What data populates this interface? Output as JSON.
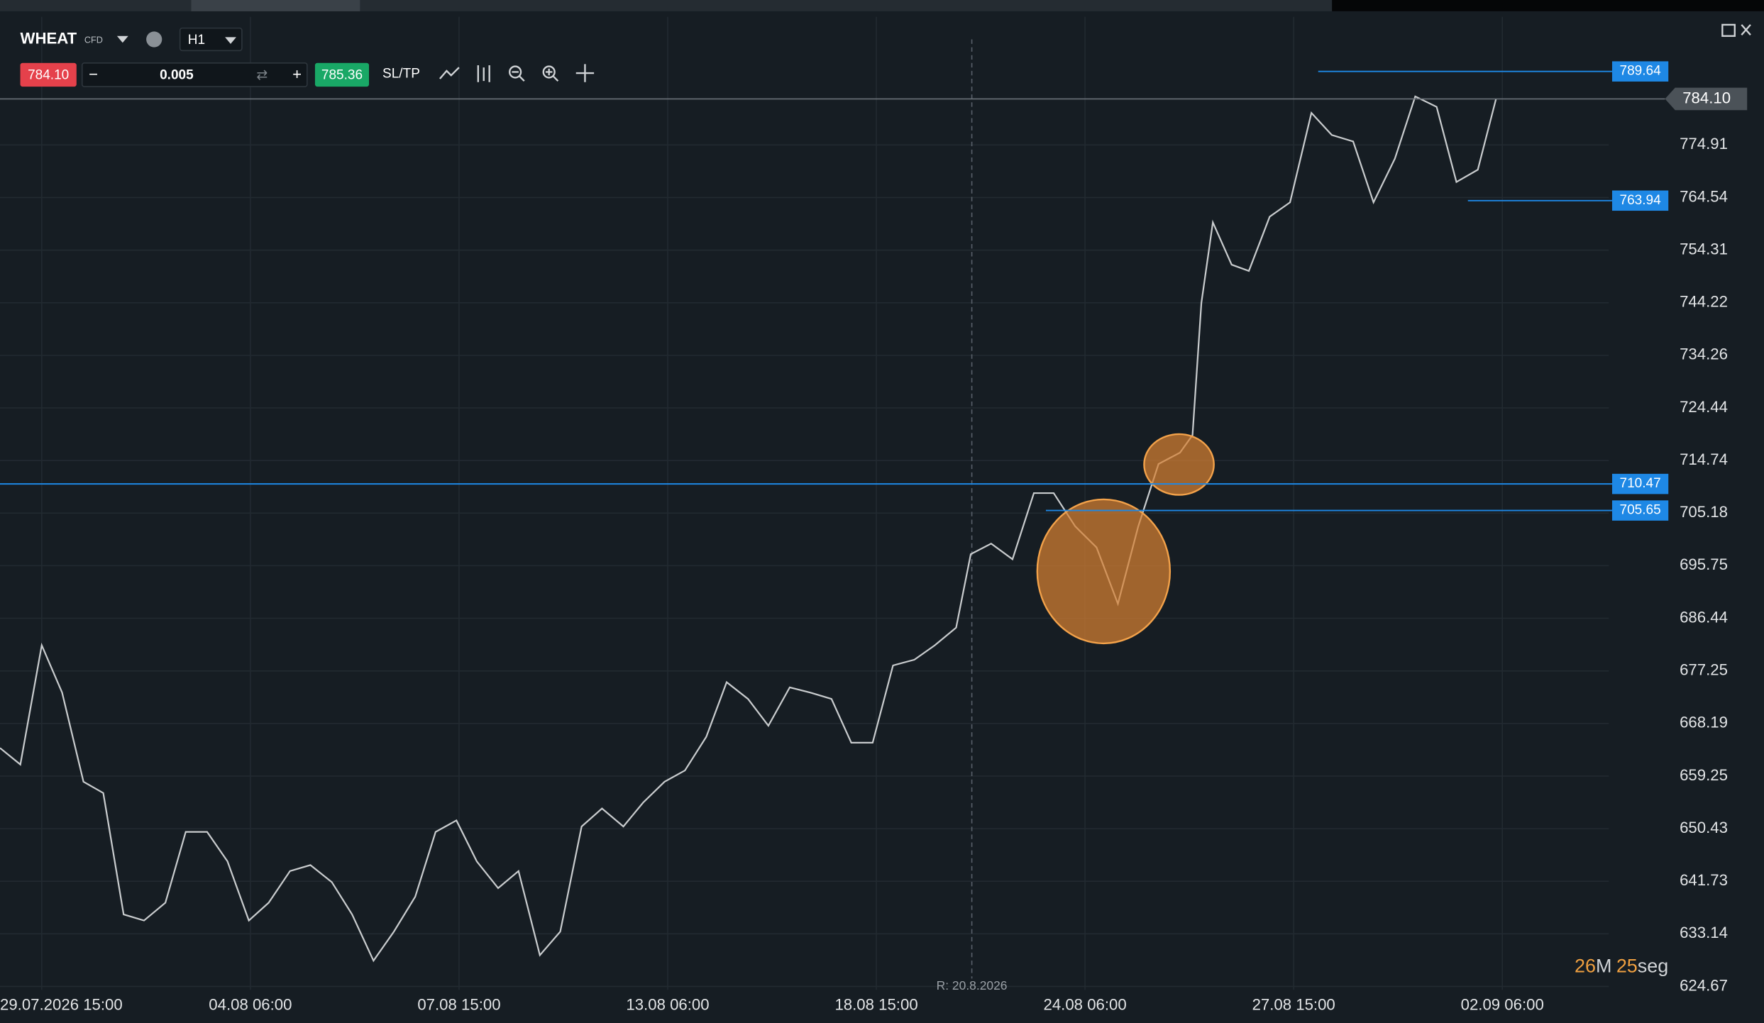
{
  "toolbar": {
    "symbol": "WHEAT",
    "instrument_type": "CFD",
    "timeframe": "H1",
    "sell_price": "784.10",
    "quantity": "0.005",
    "buy_price": "785.36",
    "sltp": "SL/TP"
  },
  "chart_data": {
    "type": "line",
    "color": "#c9ccce",
    "log": true,
    "grid": true,
    "x": [
      0,
      3.9,
      8,
      11.9,
      16,
      19.8,
      23.7,
      27.6,
      31.7,
      35.6,
      39.7,
      43.6,
      47.7,
      51.5,
      55.6,
      59.5,
      63.6,
      67.5,
      71.6,
      75.5,
      79.6,
      83.5,
      87.5,
      91.4,
      95.5,
      99.4,
      103.5,
      107.4,
      111.5,
      115.4,
      119.5,
      123.3,
      127.4,
      131.3,
      135.4,
      139.3,
      143.4,
      147.3,
      151.4,
      155.3,
      159.4,
      163.2,
      167.3,
      171.2,
      175.3,
      179.2,
      183.3,
      186.1,
      190,
      194.1,
      198.2,
      202,
      206.1,
      210.2,
      214.3,
      218.2,
      222.1,
      226.2,
      228.6,
      230.3,
      232.5,
      236.1,
      239.4,
      243.4,
      247.3,
      251.4,
      255.3,
      259.4,
      263.3,
      267.4,
      271.3,
      275.4,
      279.2,
      283.3,
      286.8
    ],
    "values": [
      664.0,
      661.2,
      681.7,
      673.5,
      658.3,
      656.4,
      636.3,
      635.3,
      638.2,
      649.9,
      649.9,
      645.0,
      635.3,
      638.2,
      643.4,
      644.4,
      641.6,
      636.3,
      628.8,
      633.5,
      639.2,
      649.9,
      651.8,
      645.0,
      640.6,
      643.4,
      629.7,
      633.5,
      650.8,
      653.8,
      650.8,
      654.8,
      658.3,
      660.2,
      665.9,
      675.3,
      672.4,
      667.8,
      674.4,
      673.5,
      672.4,
      664.9,
      664.9,
      678.2,
      679.2,
      681.7,
      684.8,
      697.8,
      699.7,
      696.9,
      708.8,
      708.8,
      702.8,
      699.0,
      689.0,
      702.8,
      714.1,
      716.2,
      719.4,
      744.2,
      759.7,
      751.5,
      750.3,
      760.8,
      763.6,
      781.3,
      776.9,
      775.6,
      763.6,
      772.2,
      784.6,
      782.5,
      767.6,
      770.0,
      784.1
    ],
    "xlim": [
      0,
      308.4
    ],
    "xticks": [
      {
        "value": 8,
        "label": "29.07.2026 15:00"
      },
      {
        "value": 48,
        "label": "04.08 06:00"
      },
      {
        "value": 88,
        "label": "07.08 15:00"
      },
      {
        "value": 128,
        "label": "13.08 06:00"
      },
      {
        "value": 168,
        "label": "18.08 15:00"
      },
      {
        "value": 208,
        "label": "24.08 06:00"
      },
      {
        "value": 248,
        "label": "27.08 15:00"
      },
      {
        "value": 288,
        "label": "02.09 06:00"
      }
    ],
    "ylim": [
      624.13,
      800.75
    ],
    "yticks": [
      774.91,
      764.54,
      754.31,
      744.22,
      734.26,
      724.44,
      714.74,
      705.18,
      695.75,
      686.44,
      677.25,
      668.19,
      659.25,
      650.43,
      641.73,
      633.14,
      624.67
    ],
    "current_price": {
      "value": 784.1,
      "label": "784.10"
    },
    "price_lines": [
      {
        "value": 789.64,
        "x_start": 252.7,
        "color": "#1e88e5"
      },
      {
        "value": 763.94,
        "x_start": 281.4,
        "color": "#1e88e5"
      },
      {
        "value": 710.47,
        "x_start": 0,
        "color": "#1e88e5"
      },
      {
        "value": 705.65,
        "x_start": 200.5,
        "color": "#1e88e5"
      }
    ],
    "marker": {
      "x": 186.3,
      "label": "R: 20.8.2026"
    },
    "timer": {
      "minutes": "26",
      "minutes_unit": "M",
      "seconds": "25",
      "seconds_unit": "seg"
    }
  }
}
